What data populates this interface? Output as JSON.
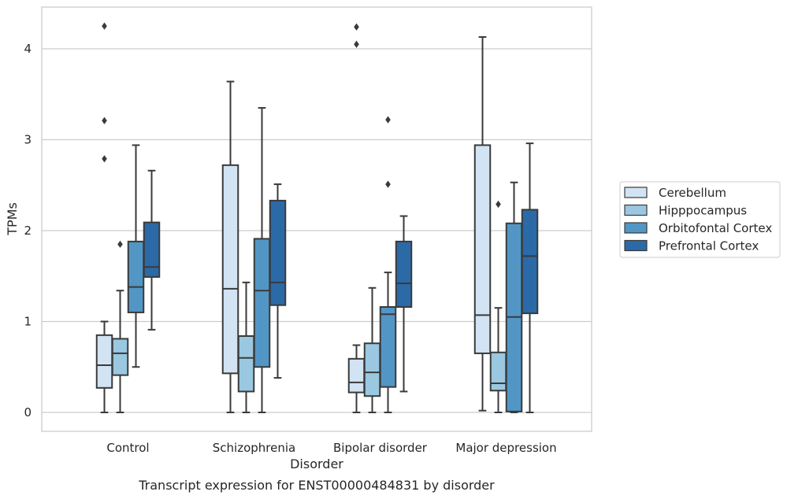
{
  "chart_data": {
    "type": "box",
    "caption": "Transcript expression for ENST00000484831 by disorder",
    "xlabel": "Disorder",
    "ylabel": "TPMs",
    "ylim": [
      -0.2,
      4.5
    ],
    "yticks": [
      0,
      1,
      2,
      3,
      4
    ],
    "grid": true,
    "legend_position": "right",
    "categories": [
      "Control",
      "Schizophrenia",
      "Bipolar disorder",
      "Major depression"
    ],
    "series": [
      {
        "name": "Cerebellum",
        "color": "#d2e3f3",
        "boxes": [
          {
            "whisker_low": 0.0,
            "q1": 0.27,
            "median": 0.52,
            "q3": 0.85,
            "whisker_high": 1.0,
            "outliers": [
              2.79,
              3.21,
              4.25
            ]
          },
          {
            "whisker_low": 0.0,
            "q1": 0.43,
            "median": 1.36,
            "q3": 2.72,
            "whisker_high": 3.64,
            "outliers": []
          },
          {
            "whisker_low": 0.0,
            "q1": 0.22,
            "median": 0.33,
            "q3": 0.59,
            "whisker_high": 0.74,
            "outliers": [
              4.05,
              4.24
            ]
          },
          {
            "whisker_low": 0.02,
            "q1": 0.65,
            "median": 1.07,
            "q3": 2.94,
            "whisker_high": 4.13,
            "outliers": []
          }
        ]
      },
      {
        "name": "Hipppocampus",
        "color": "#9ac8e0",
        "boxes": [
          {
            "whisker_low": 0.0,
            "q1": 0.41,
            "median": 0.65,
            "q3": 0.81,
            "whisker_high": 1.34,
            "outliers": [
              1.85
            ]
          },
          {
            "whisker_low": 0.0,
            "q1": 0.23,
            "median": 0.6,
            "q3": 0.84,
            "whisker_high": 1.43,
            "outliers": []
          },
          {
            "whisker_low": 0.0,
            "q1": 0.18,
            "median": 0.44,
            "q3": 0.76,
            "whisker_high": 1.37,
            "outliers": []
          },
          {
            "whisker_low": 0.0,
            "q1": 0.24,
            "median": 0.32,
            "q3": 0.66,
            "whisker_high": 1.15,
            "outliers": [
              2.29
            ]
          }
        ]
      },
      {
        "name": "Orbitofontal Cortex",
        "color": "#5296c5",
        "boxes": [
          {
            "whisker_low": 0.5,
            "q1": 1.1,
            "median": 1.38,
            "q3": 1.88,
            "whisker_high": 2.94,
            "outliers": []
          },
          {
            "whisker_low": 0.0,
            "q1": 0.5,
            "median": 1.34,
            "q3": 1.91,
            "whisker_high": 3.35,
            "outliers": []
          },
          {
            "whisker_low": 0.0,
            "q1": 0.28,
            "median": 1.08,
            "q3": 1.16,
            "whisker_high": 1.54,
            "outliers": [
              2.51,
              3.22
            ]
          },
          {
            "whisker_low": 0.0,
            "q1": 0.01,
            "median": 1.05,
            "q3": 2.08,
            "whisker_high": 2.53,
            "outliers": []
          }
        ]
      },
      {
        "name": "Prefrontal Cortex",
        "color": "#2b6aa7",
        "boxes": [
          {
            "whisker_low": 0.91,
            "q1": 1.49,
            "median": 1.6,
            "q3": 2.09,
            "whisker_high": 2.66,
            "outliers": []
          },
          {
            "whisker_low": 0.38,
            "q1": 1.18,
            "median": 1.43,
            "q3": 2.33,
            "whisker_high": 2.51,
            "outliers": []
          },
          {
            "whisker_low": 0.23,
            "q1": 1.16,
            "median": 1.42,
            "q3": 1.88,
            "whisker_high": 2.16,
            "outliers": []
          },
          {
            "whisker_low": 0.0,
            "q1": 1.09,
            "median": 1.72,
            "q3": 2.23,
            "whisker_high": 2.96,
            "outliers": []
          }
        ]
      }
    ]
  }
}
